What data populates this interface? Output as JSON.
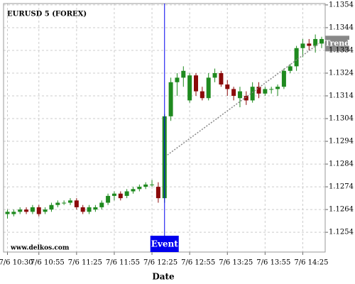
{
  "chart_data": {
    "type": "candlestick",
    "title": "EURUSD 5 (FOREX)",
    "watermark": "www.delkos.com",
    "x_label": "Date",
    "categories": [
      "7/6 10:30",
      null,
      null,
      null,
      null,
      "7/6 10:55",
      null,
      null,
      null,
      null,
      null,
      "7/6 11:25",
      null,
      null,
      null,
      null,
      null,
      "7/6 11:55",
      null,
      null,
      null,
      null,
      null,
      "7/6 12:25",
      null,
      null,
      null,
      null,
      null,
      "7/6 12:55",
      null,
      null,
      null,
      null,
      null,
      "7/6 13:25",
      null,
      null,
      null,
      null,
      null,
      "7/6 13:55",
      null,
      null,
      null,
      null,
      null,
      "7/6 14:25",
      null,
      null,
      null
    ],
    "open": [
      1.1262,
      1.1262,
      1.1263,
      1.1264,
      1.1263,
      1.1265,
      1.1263,
      1.1264,
      1.1266,
      1.1267,
      1.1267,
      1.1268,
      1.1265,
      1.1263,
      1.1264,
      1.1265,
      1.1267,
      1.127,
      1.1271,
      1.127,
      1.1272,
      1.1273,
      1.1274,
      1.1275,
      1.1274,
      1.1269,
      1.1305,
      1.132,
      1.1322,
      1.1312,
      1.1323,
      1.1316,
      1.1313,
      1.1322,
      1.1324,
      1.1319,
      1.1317,
      1.1313,
      1.1314,
      1.1312,
      1.1318,
      1.1315,
      1.1317,
      1.1317,
      1.1318,
      1.1325,
      1.1327,
      1.1335,
      1.1337,
      1.1336,
      1.1337
    ],
    "high": [
      1.1264,
      1.1264,
      1.1265,
      1.1265,
      1.1266,
      1.1266,
      1.1265,
      1.1267,
      1.1268,
      1.1268,
      1.1269,
      1.1269,
      1.1266,
      1.1266,
      1.1266,
      1.1268,
      1.1271,
      1.1272,
      1.1272,
      1.1273,
      1.1274,
      1.1275,
      1.1276,
      1.1277,
      1.1276,
      1.1306,
      1.1322,
      1.1324,
      1.1327,
      1.1324,
      1.1324,
      1.1318,
      1.1324,
      1.1326,
      1.1325,
      1.1321,
      1.1318,
      1.1318,
      1.1316,
      1.132,
      1.132,
      1.1318,
      1.1318,
      1.1319,
      1.1326,
      1.1328,
      1.1336,
      1.1339,
      1.1339,
      1.1341,
      1.134
    ],
    "low": [
      1.126,
      1.1261,
      1.1262,
      1.1262,
      1.1262,
      1.1261,
      1.1262,
      1.1263,
      1.1265,
      1.1266,
      1.1266,
      1.1264,
      1.1262,
      1.1262,
      1.1263,
      1.1264,
      1.1266,
      1.1268,
      1.1268,
      1.1269,
      1.1271,
      1.1272,
      1.1273,
      1.1274,
      1.1267,
      1.1267,
      1.1303,
      1.1314,
      1.1318,
      1.1311,
      1.1314,
      1.1312,
      1.1312,
      1.132,
      1.1318,
      1.1314,
      1.1312,
      1.1309,
      1.131,
      1.1311,
      1.1313,
      1.1314,
      1.1315,
      1.1314,
      1.1317,
      1.1324,
      1.1325,
      1.1331,
      1.1334,
      1.1333,
      1.1335
    ],
    "close": [
      1.1263,
      1.1263,
      1.1264,
      1.1263,
      1.1265,
      1.1262,
      1.1264,
      1.1266,
      1.1267,
      1.1267,
      1.1268,
      1.1265,
      1.1263,
      1.1265,
      1.1265,
      1.1267,
      1.127,
      1.1271,
      1.1269,
      1.1272,
      1.1273,
      1.1274,
      1.1275,
      1.1275,
      1.1269,
      1.1305,
      1.132,
      1.1322,
      1.1325,
      1.1323,
      1.1316,
      1.1313,
      1.1322,
      1.1324,
      1.1319,
      1.1317,
      1.1314,
      1.1316,
      1.1312,
      1.1318,
      1.1315,
      1.1317,
      1.1317,
      1.1318,
      1.1325,
      1.1327,
      1.1335,
      1.1337,
      1.1336,
      1.1339,
      1.1339
    ],
    "up_color": "#1f8a1f",
    "down_color": "#8b0a0a",
    "ylim": [
      1.12453,
      1.13546
    ],
    "yticks": [
      1.1254,
      1.1264,
      1.1274,
      1.1284,
      1.1294,
      1.1304,
      1.1314,
      1.1324,
      1.1334,
      1.1344,
      1.1354
    ],
    "grid": true,
    "event": {
      "label": "Event",
      "index": 25,
      "color": "#0000ee"
    },
    "trend": {
      "label": "Trend",
      "from": {
        "index": 25,
        "value": 1.1288
      },
      "to": {
        "index": 50,
        "value": 1.1337
      },
      "color": "#888888"
    }
  }
}
